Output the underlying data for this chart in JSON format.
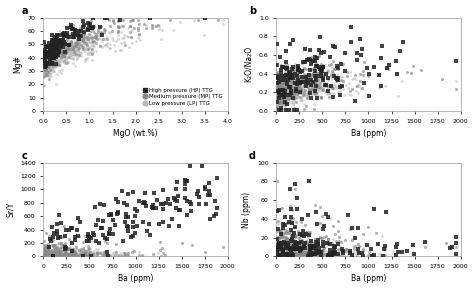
{
  "panels": [
    "a",
    "b",
    "c",
    "d"
  ],
  "colors": {
    "HP": "#222222",
    "MP": "#888888",
    "LP": "#bbbbbb"
  },
  "marker_size_hp": 6,
  "marker_size_mp": 5,
  "marker_size_lp": 4,
  "legend_labels": {
    "HP": "High pressure (HP) TTG",
    "MP": "Medium pressure (MP) TTG",
    "LP": "Low pressure (LP) TTG"
  },
  "panel_a": {
    "xlabel": "MgO (wt.%)",
    "ylabel": "Mg#",
    "xlim": [
      0,
      4
    ],
    "ylim": [
      0,
      70
    ]
  },
  "panel_b": {
    "xlabel": "Ba (ppm)",
    "ylabel": "K₂O/Na₂O",
    "xlim": [
      0,
      2000
    ],
    "ylim": [
      0,
      1.0
    ]
  },
  "panel_c": {
    "xlabel": "Ba (ppm)",
    "ylabel": "Sr/Y",
    "xlim": [
      0,
      2000
    ],
    "ylim": [
      0,
      1400
    ]
  },
  "panel_d": {
    "xlabel": "Ba (ppm)",
    "ylabel": "Nb (ppm)",
    "xlim": [
      0,
      2000
    ],
    "ylim": [
      0,
      100
    ]
  },
  "background_color": "#ffffff",
  "figsize": [
    4.74,
    2.89
  ],
  "dpi": 100
}
